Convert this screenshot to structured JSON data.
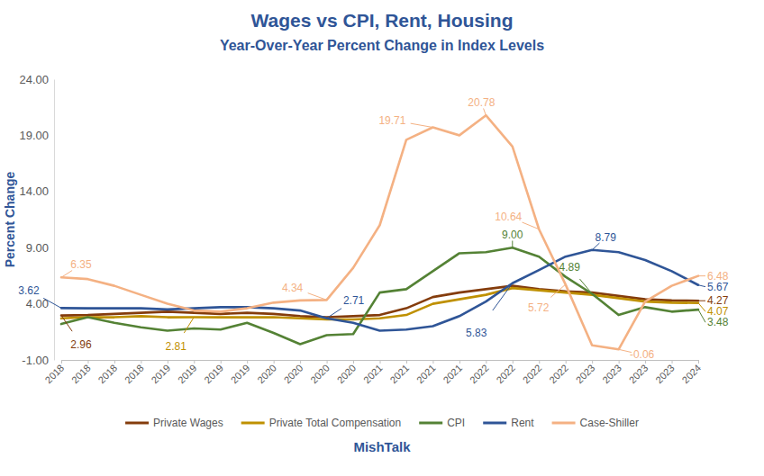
{
  "chart_data": {
    "type": "line",
    "title": "Wages vs CPI, Rent, Housing",
    "subtitle": "Year-Over-Year Percent Change in Index Levels",
    "y_label": "Percent Change",
    "x_label": "MishTalk",
    "categories": [
      "2018",
      "2018",
      "2018",
      "2018",
      "2019",
      "2019",
      "2019",
      "2019",
      "2020",
      "2020",
      "2020",
      "2020",
      "2021",
      "2021",
      "2021",
      "2021",
      "2022",
      "2022",
      "2022",
      "2022",
      "2023",
      "2023",
      "2023",
      "2023",
      "2024"
    ],
    "ylim": [
      -1,
      24
    ],
    "yticks": [
      {
        "value": -1,
        "label": "-1.00"
      },
      {
        "value": 4,
        "label": "4.00"
      },
      {
        "value": 9,
        "label": "9.00"
      },
      {
        "value": 14,
        "label": "14.00"
      },
      {
        "value": 19,
        "label": "19.00"
      },
      {
        "value": 24,
        "label": "24.00"
      }
    ],
    "grid": false,
    "legend": "bottom",
    "series": [
      {
        "name": "Private Wages",
        "color": "#843c0c",
        "values": [
          2.96,
          3.0,
          3.1,
          3.2,
          3.3,
          3.2,
          3.1,
          3.2,
          3.1,
          2.9,
          2.8,
          2.9,
          3.0,
          3.6,
          4.6,
          5.0,
          5.3,
          5.6,
          5.3,
          5.1,
          5.0,
          4.7,
          4.4,
          4.3,
          4.27
        ],
        "value_labels": [
          "2.96",
          null,
          null,
          null,
          null,
          null,
          null,
          null,
          null,
          null,
          null,
          null,
          null,
          null,
          null,
          null,
          null,
          null,
          null,
          null,
          null,
          null,
          null,
          null,
          "4.27"
        ]
      },
      {
        "name": "Private Total Compensation",
        "color": "#bf9000",
        "values": [
          2.7,
          2.8,
          2.8,
          2.9,
          2.8,
          2.81,
          2.8,
          2.8,
          2.8,
          2.7,
          2.6,
          2.6,
          2.7,
          3.0,
          4.0,
          4.4,
          4.8,
          5.4,
          5.2,
          5.0,
          4.8,
          4.5,
          4.2,
          4.1,
          4.07
        ],
        "value_labels": [
          null,
          null,
          null,
          null,
          null,
          "2.81",
          null,
          null,
          null,
          null,
          null,
          null,
          null,
          null,
          null,
          null,
          null,
          null,
          null,
          null,
          null,
          null,
          null,
          null,
          "4.07"
        ]
      },
      {
        "name": "CPI",
        "color": "#548235",
        "values": [
          2.2,
          2.8,
          2.3,
          1.9,
          1.6,
          1.8,
          1.7,
          2.3,
          1.4,
          0.4,
          1.2,
          1.3,
          5.0,
          5.3,
          6.9,
          8.5,
          8.6,
          9.0,
          8.2,
          6.4,
          4.89,
          3.0,
          3.7,
          3.3,
          3.48
        ],
        "value_labels": [
          null,
          null,
          null,
          null,
          null,
          null,
          null,
          null,
          null,
          null,
          null,
          null,
          null,
          null,
          null,
          null,
          null,
          "9.00",
          null,
          null,
          "4.89",
          null,
          null,
          null,
          "3.48"
        ]
      },
      {
        "name": "Rent",
        "color": "#2f5597",
        "values": [
          3.62,
          3.6,
          3.6,
          3.6,
          3.5,
          3.6,
          3.7,
          3.7,
          3.6,
          3.4,
          2.71,
          2.3,
          1.6,
          1.7,
          2.0,
          2.9,
          4.2,
          5.83,
          7.0,
          8.2,
          8.79,
          8.6,
          7.9,
          6.9,
          5.67
        ],
        "value_labels": [
          "3.62",
          null,
          null,
          null,
          null,
          null,
          null,
          null,
          null,
          null,
          "2.71",
          null,
          null,
          null,
          null,
          null,
          null,
          "5.83",
          null,
          null,
          "8.79",
          null,
          null,
          null,
          "5.67"
        ]
      },
      {
        "name": "Case-Shiller",
        "color": "#f4b183",
        "values": [
          6.35,
          6.2,
          5.6,
          4.8,
          4.0,
          3.4,
          3.3,
          3.6,
          4.1,
          4.3,
          4.34,
          7.2,
          11.0,
          18.6,
          19.71,
          19.0,
          20.78,
          18.0,
          10.64,
          5.72,
          0.3,
          -0.06,
          4.2,
          5.6,
          6.48
        ],
        "value_labels": [
          "6.35",
          null,
          null,
          null,
          null,
          null,
          null,
          null,
          null,
          null,
          "4.34",
          null,
          null,
          null,
          "19.71",
          null,
          "20.78",
          null,
          "10.64",
          "5.72",
          null,
          "-0.06",
          null,
          null,
          "6.48"
        ]
      }
    ]
  }
}
